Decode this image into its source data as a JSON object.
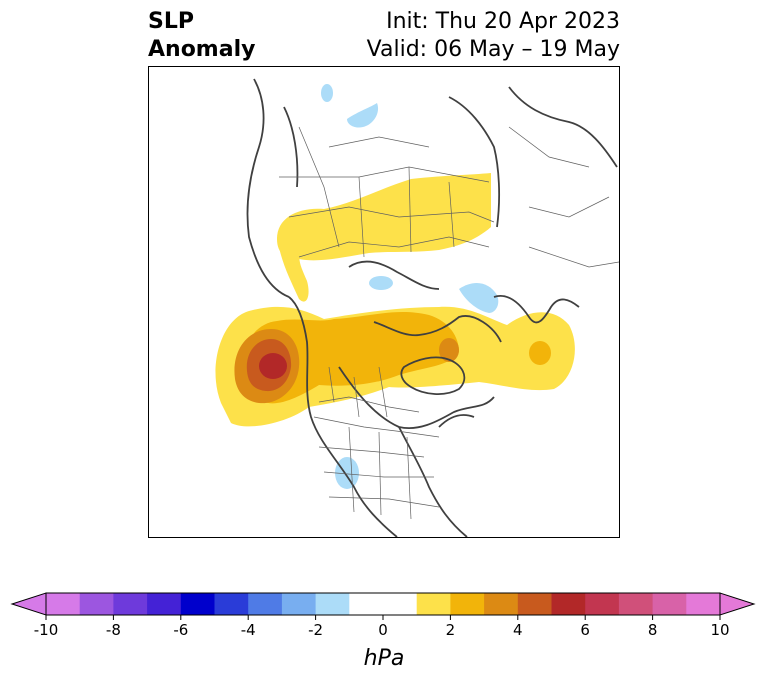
{
  "title": {
    "left_line1": "SLP",
    "left_line2": "Anomaly",
    "right_line1": "Init: Thu 20 Apr 2023",
    "right_line2": "Valid: 06 May – 19 May"
  },
  "colorbar": {
    "unit": "hPa",
    "min": -10,
    "max": 10,
    "step": 1,
    "extend": "both",
    "tick_labels": [
      "-10",
      "-8",
      "-6",
      "-4",
      "-2",
      "0",
      "2",
      "4",
      "6",
      "8",
      "10"
    ],
    "colors": [
      "#d67ae8",
      "#9c56e0",
      "#6e3adb",
      "#4422d6",
      "#0000cc",
      "#2a3cd8",
      "#4f7be6",
      "#78aef0",
      "#acdcf8",
      "#ffffff",
      "#ffffff",
      "#fde14a",
      "#f2b40a",
      "#dc8a14",
      "#c85a1e",
      "#b22828",
      "#c23650",
      "#d0507a",
      "#d862a8",
      "#e479d8"
    ]
  },
  "map": {
    "projection": "north-polar stereographic",
    "regions": [
      {
        "name": "positive-anomaly-northern-eurasia",
        "level_hpa": 1
      },
      {
        "name": "positive-anomaly-north-pacific",
        "level_hpa": 6
      },
      {
        "name": "positive-anomaly-canada-greenland",
        "level_hpa": 3
      },
      {
        "name": "positive-anomaly-north-atlantic",
        "level_hpa": 2
      },
      {
        "name": "negative-anomaly-arctic",
        "level_hpa": -1
      },
      {
        "name": "negative-anomaly-us-plains",
        "level_hpa": -1
      }
    ]
  }
}
